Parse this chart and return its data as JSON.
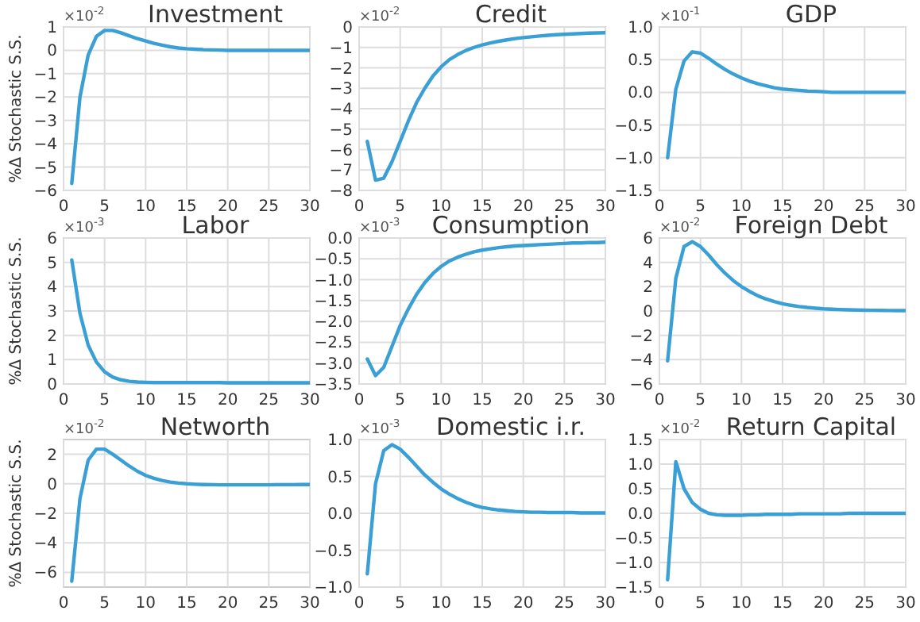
{
  "chart_data": [
    {
      "type": "line",
      "title": "Investment",
      "ylabel": "%Δ Stochastic S.S.",
      "annotations": [
        "×10$^{-2}$"
      ],
      "grid": true,
      "color": "#3a9fd4",
      "xlim": [
        0,
        30
      ],
      "xticks": [
        0,
        5,
        10,
        15,
        20,
        25,
        30
      ],
      "ylim": [
        -6,
        1
      ],
      "yticks": [
        -6,
        -5,
        -4,
        -3,
        -2,
        -1,
        0,
        1
      ],
      "x": [
        1,
        2,
        3,
        4,
        5,
        6,
        7,
        8,
        9,
        10,
        11,
        12,
        13,
        14,
        15,
        16,
        17,
        18,
        19,
        20,
        21,
        22,
        23,
        24,
        25,
        26,
        27,
        28,
        29,
        30
      ],
      "values": [
        -5.7,
        -2.0,
        -0.2,
        0.6,
        0.85,
        0.85,
        0.75,
        0.62,
        0.5,
        0.4,
        0.3,
        0.22,
        0.15,
        0.1,
        0.07,
        0.05,
        0.03,
        0.02,
        0.01,
        0,
        0,
        0,
        0,
        0,
        0,
        0,
        0,
        0,
        0,
        0
      ]
    },
    {
      "type": "line",
      "title": "Credit",
      "annotations": [
        "×10$^{-2}$"
      ],
      "grid": true,
      "color": "#3a9fd4",
      "xlim": [
        0,
        30
      ],
      "xticks": [
        0,
        5,
        10,
        15,
        20,
        25,
        30
      ],
      "ylim": [
        -8,
        0
      ],
      "yticks": [
        -8,
        -7,
        -6,
        -5,
        -4,
        -3,
        -2,
        -1,
        0
      ],
      "x": [
        1,
        2,
        3,
        4,
        5,
        6,
        7,
        8,
        9,
        10,
        11,
        12,
        13,
        14,
        15,
        16,
        17,
        18,
        19,
        20,
        21,
        22,
        23,
        24,
        25,
        26,
        27,
        28,
        29,
        30
      ],
      "values": [
        -5.6,
        -7.5,
        -7.4,
        -6.6,
        -5.6,
        -4.6,
        -3.7,
        -3.0,
        -2.4,
        -1.95,
        -1.6,
        -1.35,
        -1.15,
        -1.0,
        -0.88,
        -0.78,
        -0.7,
        -0.63,
        -0.57,
        -0.52,
        -0.48,
        -0.44,
        -0.41,
        -0.38,
        -0.36,
        -0.34,
        -0.32,
        -0.3,
        -0.29,
        -0.28
      ]
    },
    {
      "type": "line",
      "title": "GDP",
      "annotations": [
        "×10$^{-1}$"
      ],
      "grid": true,
      "color": "#3a9fd4",
      "xlim": [
        0,
        30
      ],
      "xticks": [
        0,
        5,
        10,
        15,
        20,
        25,
        30
      ],
      "ylim": [
        -1.5,
        1
      ],
      "yticks": [
        {
          "value": -1.5,
          "label": "−1.5"
        },
        {
          "value": -1,
          "label": "−1.0"
        },
        {
          "value": -0.5,
          "label": "−0.5"
        },
        {
          "value": 0,
          "label": "0.0"
        },
        {
          "value": 0.5,
          "label": "0.5"
        },
        {
          "value": 1,
          "label": "1.0"
        }
      ],
      "x": [
        1,
        2,
        3,
        4,
        5,
        6,
        7,
        8,
        9,
        10,
        11,
        12,
        13,
        14,
        15,
        16,
        17,
        18,
        19,
        20,
        21,
        22,
        23,
        24,
        25,
        26,
        27,
        28,
        29,
        30
      ],
      "values": [
        -1.0,
        0.05,
        0.48,
        0.62,
        0.6,
        0.52,
        0.43,
        0.35,
        0.28,
        0.22,
        0.17,
        0.13,
        0.1,
        0.07,
        0.05,
        0.04,
        0.03,
        0.02,
        0.015,
        0.01,
        0,
        0,
        0,
        0,
        0,
        0,
        0,
        0,
        0,
        0
      ]
    },
    {
      "type": "line",
      "title": "Labor",
      "ylabel": "%Δ Stochastic S.S.",
      "annotations": [
        "×10$^{-3}$"
      ],
      "grid": true,
      "color": "#3a9fd4",
      "xlim": [
        0,
        30
      ],
      "xticks": [
        0,
        5,
        10,
        15,
        20,
        25,
        30
      ],
      "ylim": [
        0,
        6
      ],
      "yticks": [
        0,
        1,
        2,
        3,
        4,
        5,
        6
      ],
      "x": [
        1,
        2,
        3,
        4,
        5,
        6,
        7,
        8,
        9,
        10,
        11,
        12,
        13,
        14,
        15,
        16,
        17,
        18,
        19,
        20,
        21,
        22,
        23,
        24,
        25,
        26,
        27,
        28,
        29,
        30
      ],
      "values": [
        5.1,
        2.9,
        1.6,
        0.9,
        0.5,
        0.28,
        0.17,
        0.11,
        0.08,
        0.07,
        0.06,
        0.06,
        0.06,
        0.06,
        0.06,
        0.06,
        0.06,
        0.06,
        0.06,
        0.05,
        0.05,
        0.05,
        0.05,
        0.05,
        0.05,
        0.05,
        0.05,
        0.05,
        0.05,
        0.05
      ]
    },
    {
      "type": "line",
      "title": "Consumption",
      "annotations": [
        "×10$^{-3}$"
      ],
      "grid": true,
      "color": "#3a9fd4",
      "xlim": [
        0,
        30
      ],
      "xticks": [
        0,
        5,
        10,
        15,
        20,
        25,
        30
      ],
      "ylim": [
        -3.5,
        0
      ],
      "yticks": [
        {
          "value": -3.5,
          "label": "−3.5"
        },
        {
          "value": -3,
          "label": "−3.0"
        },
        {
          "value": -2.5,
          "label": "−2.5"
        },
        {
          "value": -2,
          "label": "−2.0"
        },
        {
          "value": -1.5,
          "label": "−1.5"
        },
        {
          "value": -1,
          "label": "−1.0"
        },
        {
          "value": -0.5,
          "label": "−0.5"
        },
        {
          "value": 0,
          "label": "0.0"
        }
      ],
      "x": [
        1,
        2,
        3,
        4,
        5,
        6,
        7,
        8,
        9,
        10,
        11,
        12,
        13,
        14,
        15,
        16,
        17,
        18,
        19,
        20,
        21,
        22,
        23,
        24,
        25,
        26,
        27,
        28,
        29,
        30
      ],
      "values": [
        -2.9,
        -3.3,
        -3.1,
        -2.6,
        -2.1,
        -1.7,
        -1.35,
        -1.07,
        -0.85,
        -0.68,
        -0.55,
        -0.46,
        -0.39,
        -0.33,
        -0.29,
        -0.26,
        -0.23,
        -0.21,
        -0.19,
        -0.18,
        -0.17,
        -0.16,
        -0.15,
        -0.14,
        -0.13,
        -0.12,
        -0.12,
        -0.11,
        -0.11,
        -0.1
      ]
    },
    {
      "type": "line",
      "title": "Foreign Debt",
      "annotations": [
        "×10$^{-2}$"
      ],
      "grid": true,
      "color": "#3a9fd4",
      "xlim": [
        0,
        30
      ],
      "xticks": [
        0,
        5,
        10,
        15,
        20,
        25,
        30
      ],
      "ylim": [
        -6,
        6
      ],
      "yticks": [
        -6,
        -4,
        -2,
        0,
        2,
        4,
        6
      ],
      "x": [
        1,
        2,
        3,
        4,
        5,
        6,
        7,
        8,
        9,
        10,
        11,
        12,
        13,
        14,
        15,
        16,
        17,
        18,
        19,
        20,
        21,
        22,
        23,
        24,
        25,
        26,
        27,
        28,
        29,
        30
      ],
      "values": [
        -4.1,
        2.7,
        5.3,
        5.7,
        5.3,
        4.6,
        3.8,
        3.1,
        2.5,
        2.0,
        1.6,
        1.25,
        0.98,
        0.77,
        0.6,
        0.47,
        0.37,
        0.29,
        0.23,
        0.18,
        0.15,
        0.12,
        0.1,
        0.08,
        0.07,
        0.06,
        0.05,
        0.04,
        0.03,
        0.03
      ]
    },
    {
      "type": "line",
      "title": "Networth",
      "ylabel": "%Δ Stochastic S.S.",
      "annotations": [
        "×10$^{-2}$"
      ],
      "grid": true,
      "color": "#3a9fd4",
      "xlim": [
        0,
        30
      ],
      "xticks": [
        0,
        5,
        10,
        15,
        20,
        25,
        30
      ],
      "ylim": [
        -7,
        3
      ],
      "yticks": [
        -6,
        -4,
        -2,
        0,
        2
      ],
      "x": [
        1,
        2,
        3,
        4,
        5,
        6,
        7,
        8,
        9,
        10,
        11,
        12,
        13,
        14,
        15,
        16,
        17,
        18,
        19,
        20,
        21,
        22,
        23,
        24,
        25,
        26,
        27,
        28,
        29,
        30
      ],
      "values": [
        -6.6,
        -1.0,
        1.6,
        2.35,
        2.35,
        2.0,
        1.6,
        1.2,
        0.85,
        0.57,
        0.37,
        0.22,
        0.12,
        0.05,
        0,
        -0.03,
        -0.05,
        -0.06,
        -0.07,
        -0.07,
        -0.07,
        -0.07,
        -0.07,
        -0.07,
        -0.07,
        -0.06,
        -0.06,
        -0.06,
        -0.05,
        -0.05
      ]
    },
    {
      "type": "line",
      "title": "Domestic i.r.",
      "annotations": [
        "×10$^{-3}$"
      ],
      "grid": true,
      "color": "#3a9fd4",
      "xlim": [
        0,
        30
      ],
      "xticks": [
        0,
        5,
        10,
        15,
        20,
        25,
        30
      ],
      "ylim": [
        -1,
        1
      ],
      "yticks": [
        {
          "value": -1,
          "label": "−1.0"
        },
        {
          "value": -0.5,
          "label": "−0.5"
        },
        {
          "value": 0,
          "label": "0.0"
        },
        {
          "value": 0.5,
          "label": "0.5"
        },
        {
          "value": 1,
          "label": "1.0"
        }
      ],
      "x": [
        1,
        2,
        3,
        4,
        5,
        6,
        7,
        8,
        9,
        10,
        11,
        12,
        13,
        14,
        15,
        16,
        17,
        18,
        19,
        20,
        21,
        22,
        23,
        24,
        25,
        26,
        27,
        28,
        29,
        30
      ],
      "values": [
        -0.82,
        0.4,
        0.85,
        0.93,
        0.87,
        0.76,
        0.64,
        0.52,
        0.42,
        0.33,
        0.26,
        0.2,
        0.15,
        0.11,
        0.08,
        0.06,
        0.045,
        0.035,
        0.025,
        0.02,
        0.015,
        0.015,
        0.01,
        0.01,
        0.01,
        0.01,
        0.005,
        0.005,
        0.005,
        0.005
      ]
    },
    {
      "type": "line",
      "title": "Return Capital",
      "annotations": [
        "×10$^{-2}$"
      ],
      "grid": true,
      "color": "#3a9fd4",
      "xlim": [
        0,
        30
      ],
      "xticks": [
        0,
        5,
        10,
        15,
        20,
        25,
        30
      ],
      "ylim": [
        -1.5,
        1.5
      ],
      "yticks": [
        {
          "value": -1.5,
          "label": "−1.5"
        },
        {
          "value": -1,
          "label": "−1.0"
        },
        {
          "value": -0.5,
          "label": "−0.5"
        },
        {
          "value": 0,
          "label": "0.0"
        },
        {
          "value": 0.5,
          "label": "0.5"
        },
        {
          "value": 1,
          "label": "1.0"
        },
        {
          "value": 1.5,
          "label": "1.5"
        }
      ],
      "x": [
        1,
        2,
        3,
        4,
        5,
        6,
        7,
        8,
        9,
        10,
        11,
        12,
        13,
        14,
        15,
        16,
        17,
        18,
        19,
        20,
        21,
        22,
        23,
        24,
        25,
        26,
        27,
        28,
        29,
        30
      ],
      "values": [
        -1.35,
        1.05,
        0.5,
        0.22,
        0.08,
        0,
        -0.03,
        -0.04,
        -0.04,
        -0.04,
        -0.03,
        -0.03,
        -0.02,
        -0.02,
        -0.02,
        -0.02,
        -0.01,
        -0.01,
        -0.01,
        -0.01,
        -0.01,
        -0.01,
        0,
        0,
        0,
        0,
        0,
        0,
        0,
        0
      ]
    }
  ]
}
